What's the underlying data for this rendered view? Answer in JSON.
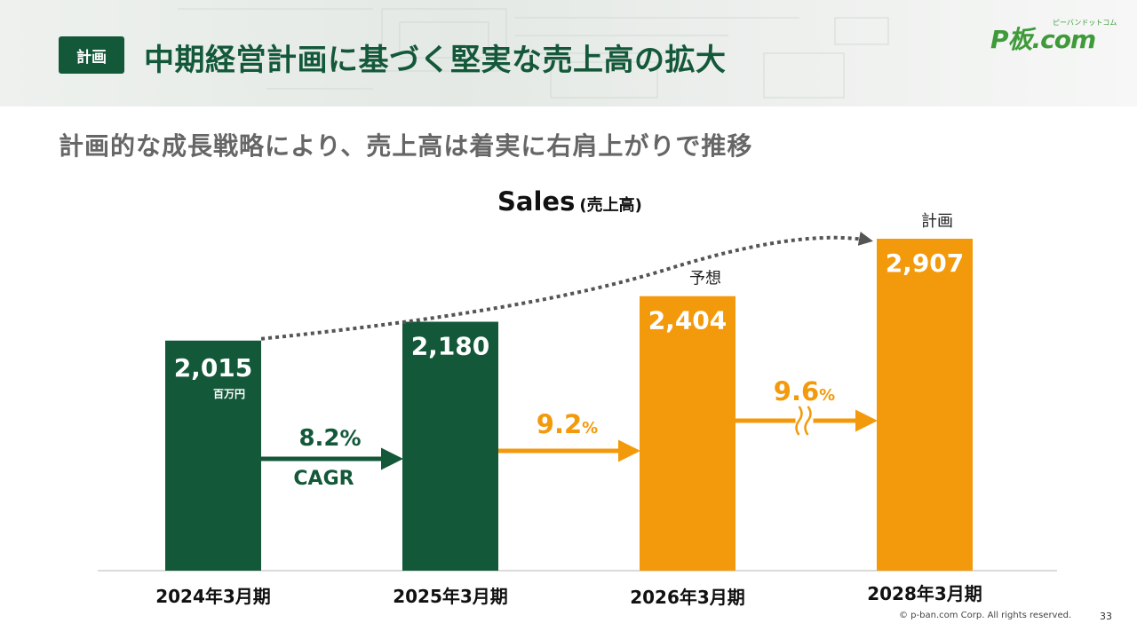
{
  "header": {
    "tag": "計画",
    "title": "中期経営計画に基づく堅実な売上高の拡大",
    "logo_text": "P板.com",
    "logo_sub": "ピーバンドットコム"
  },
  "subtitle": "計画的な成長戦略により、売上高は着実に右肩上がりで推移",
  "chart_data": {
    "type": "bar",
    "title": "Sales",
    "title_sub": "(売上高)",
    "unit": "百万円",
    "categories": [
      "2024年3月期",
      "2025年3月期",
      "2026年3月期",
      "2028年3月期"
    ],
    "values": [
      2015,
      2180,
      2404,
      2907
    ],
    "value_labels": [
      "2,015",
      "2,180",
      "2,404",
      "2,907"
    ],
    "bar_status": [
      "actual",
      "actual",
      "forecast",
      "plan"
    ],
    "bar_top_labels": [
      "",
      "",
      "予想",
      "計画"
    ],
    "growth": [
      {
        "from": 0,
        "to": 1,
        "rate": "8.2",
        "pct": "%",
        "note": "CAGR"
      },
      {
        "from": 1,
        "to": 2,
        "rate": "9.2",
        "pct": "%",
        "note": ""
      },
      {
        "from": 2,
        "to": 3,
        "rate": "9.6",
        "pct": "%",
        "note": "",
        "axis_break": true
      }
    ],
    "colors": {
      "actual": "#14583a",
      "forecast": "#f39a0c",
      "plan": "#f39a0c",
      "trend": "#555555"
    },
    "ylim": [
      0,
      2907
    ],
    "grid": false
  },
  "footer": {
    "copyright": "© p-ban.com Corp. All rights reserved.",
    "page": "33"
  }
}
